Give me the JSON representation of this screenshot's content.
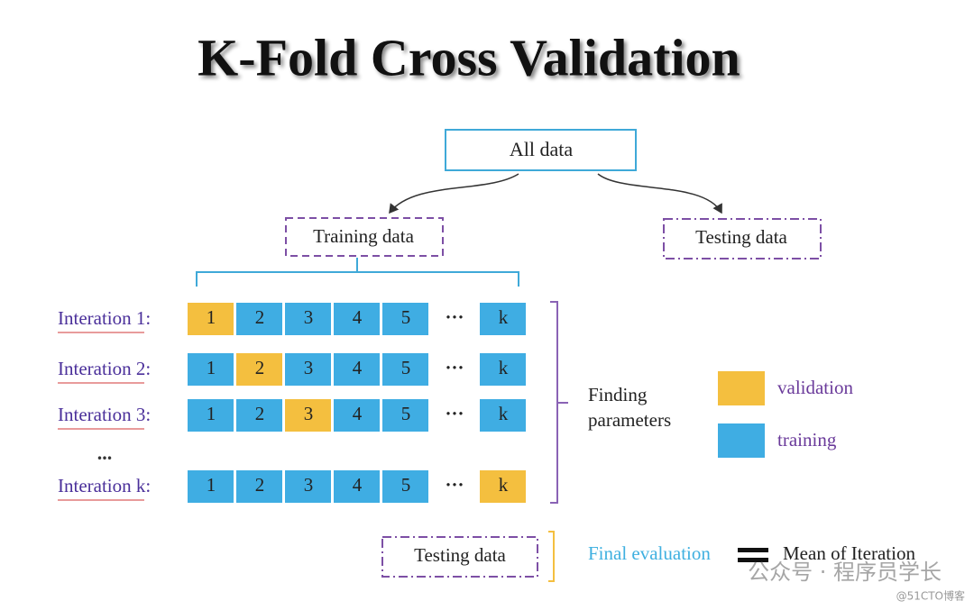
{
  "title": "K-Fold Cross Validation",
  "top_box": "All data",
  "split": {
    "training": "Training data",
    "testing": "Testing data"
  },
  "iterations": [
    {
      "label": "Interation 1:",
      "cells": [
        "1",
        "2",
        "3",
        "4",
        "5",
        "···",
        "k"
      ],
      "validation": 0
    },
    {
      "label": "Interation 2:",
      "cells": [
        "1",
        "2",
        "3",
        "4",
        "5",
        "···",
        "k"
      ],
      "validation": 1
    },
    {
      "label": "Interation 3:",
      "cells": [
        "1",
        "2",
        "3",
        "4",
        "5",
        "···",
        "k"
      ],
      "validation": 2
    },
    {
      "label": "Interation k:",
      "cells": [
        "1",
        "2",
        "3",
        "4",
        "5",
        "···",
        "k"
      ],
      "validation": 6
    }
  ],
  "ellipsis": "...",
  "bracket_text": [
    "Finding",
    "parameters"
  ],
  "legend": [
    {
      "name": "validation",
      "color": "#f4bf3f"
    },
    {
      "name": "training",
      "color": "#3fade3"
    }
  ],
  "final": {
    "box": "Testing data",
    "label": "Final evaluation",
    "result": "Mean of Iteration"
  },
  "watermark": {
    "main": "公众号 · 程序员学长",
    "sub": "@51CTO博客"
  }
}
